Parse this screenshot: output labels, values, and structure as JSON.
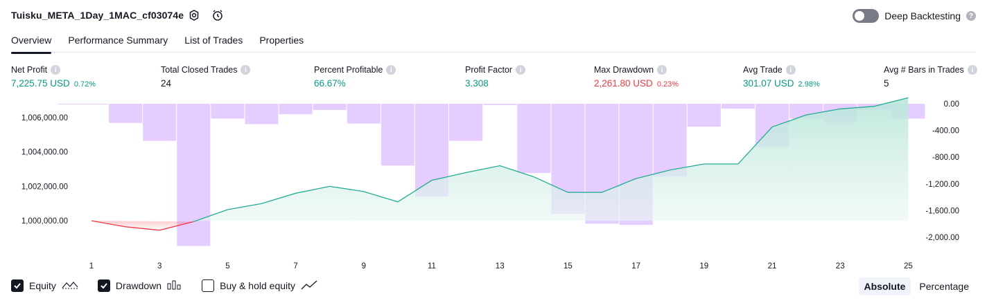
{
  "header": {
    "title": "Tuisku_META_1Day_1MAC_cf03074e",
    "deep_backtesting_label": "Deep Backtesting",
    "help_glyph": "?"
  },
  "tabs": [
    {
      "label": "Overview"
    },
    {
      "label": "Performance Summary"
    },
    {
      "label": "List of Trades"
    },
    {
      "label": "Properties"
    }
  ],
  "metrics": {
    "net_profit": {
      "label": "Net Profit",
      "value": "7,225.75 USD",
      "pct": "0.72%"
    },
    "total_closed_trades": {
      "label": "Total Closed Trades",
      "value": "24"
    },
    "percent_profitable": {
      "label": "Percent Profitable",
      "value": "66.67%"
    },
    "profit_factor": {
      "label": "Profit Factor",
      "value": "3.308"
    },
    "max_drawdown": {
      "label": "Max Drawdown",
      "value": "2,261.80 USD",
      "pct": "0.23%"
    },
    "avg_trade": {
      "label": "Avg Trade",
      "value": "301.07 USD",
      "pct": "2.98%"
    },
    "avg_bars": {
      "label": "Avg # Bars in Trades",
      "value": "5"
    },
    "info_glyph": "i"
  },
  "chart_data": {
    "type": "area",
    "x": [
      1,
      2,
      3,
      4,
      5,
      6,
      7,
      8,
      9,
      10,
      11,
      12,
      13,
      14,
      15,
      16,
      17,
      18,
      19,
      20,
      21,
      22,
      23,
      24,
      25
    ],
    "x_tick_labels": [
      "1",
      "3",
      "5",
      "7",
      "9",
      "11",
      "13",
      "15",
      "17",
      "19",
      "21",
      "23",
      "25"
    ],
    "equity": [
      1000000,
      999650,
      999450,
      999950,
      1000650,
      1001000,
      1001600,
      1002000,
      1001700,
      1001100,
      1002350,
      1002800,
      1003200,
      1002550,
      1001650,
      1001650,
      1002450,
      1002950,
      1003300,
      1003300,
      1005450,
      1006150,
      1006500,
      1006650,
      1007150
    ],
    "drawdown": [
      -10,
      -310,
      -600,
      -2300,
      -240,
      -330,
      -170,
      -100,
      -320,
      -1000,
      -1500,
      -600,
      -20,
      -1120,
      -1780,
      -1940,
      -1960,
      -1180,
      -370,
      -80,
      -700,
      -240,
      -300,
      -100,
      -240
    ],
    "left_axis": {
      "ticks": [
        "1,000,000.00",
        "1,002,000.00",
        "1,004,000.00",
        "1,006,000.00"
      ],
      "tick_values": [
        1000000,
        1002000,
        1004000,
        1006000
      ],
      "range": [
        999000,
        1007200
      ]
    },
    "right_axis": {
      "ticks": [
        "0.00",
        "-400.00",
        "-800.00",
        "-1,200.00",
        "-1,600.00",
        "-2,000.00"
      ],
      "tick_values": [
        0,
        -400,
        -800,
        -1200,
        -1600,
        -2000
      ],
      "range": [
        -2350,
        0
      ]
    },
    "colors": {
      "equity_up": "#22ab94",
      "equity_down": "#f23645",
      "drawdown_fill": "#e1c6ff",
      "area_fill": "#c9ebe2"
    }
  },
  "legend": {
    "equity": "Equity",
    "drawdown": "Drawdown",
    "buy_hold": "Buy & hold equity"
  },
  "mode": {
    "absolute": "Absolute",
    "percentage": "Percentage"
  }
}
